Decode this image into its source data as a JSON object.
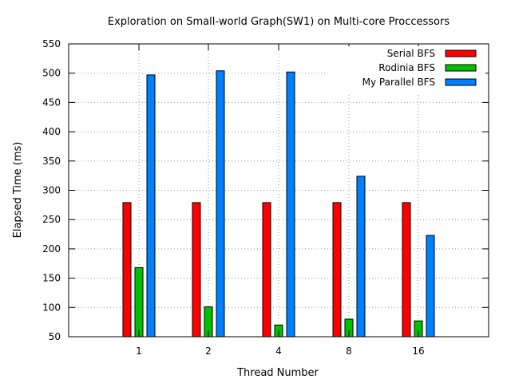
{
  "chart_data": {
    "type": "bar",
    "title": "Exploration on Small-world Graph(SW1) on Multi-core Proccessors",
    "xlabel": "Thread Number",
    "ylabel": "Elapsed Time (ms)",
    "categories": [
      "1",
      "2",
      "4",
      "8",
      "16"
    ],
    "ylim": [
      50,
      550
    ],
    "yticks": [
      50,
      100,
      150,
      200,
      250,
      300,
      350,
      400,
      450,
      500,
      550
    ],
    "grid": true,
    "legend_position": "top-right",
    "series": [
      {
        "name": "Serial BFS",
        "color": "#ff0000",
        "values": [
          279,
          279,
          279,
          279,
          279
        ]
      },
      {
        "name": "Rodinia BFS",
        "color": "#00c000",
        "values": [
          168,
          101,
          70,
          80,
          77
        ]
      },
      {
        "name": "My Parallel BFS",
        "color": "#0080ff",
        "values": [
          497,
          504,
          502,
          324,
          223
        ]
      }
    ]
  }
}
